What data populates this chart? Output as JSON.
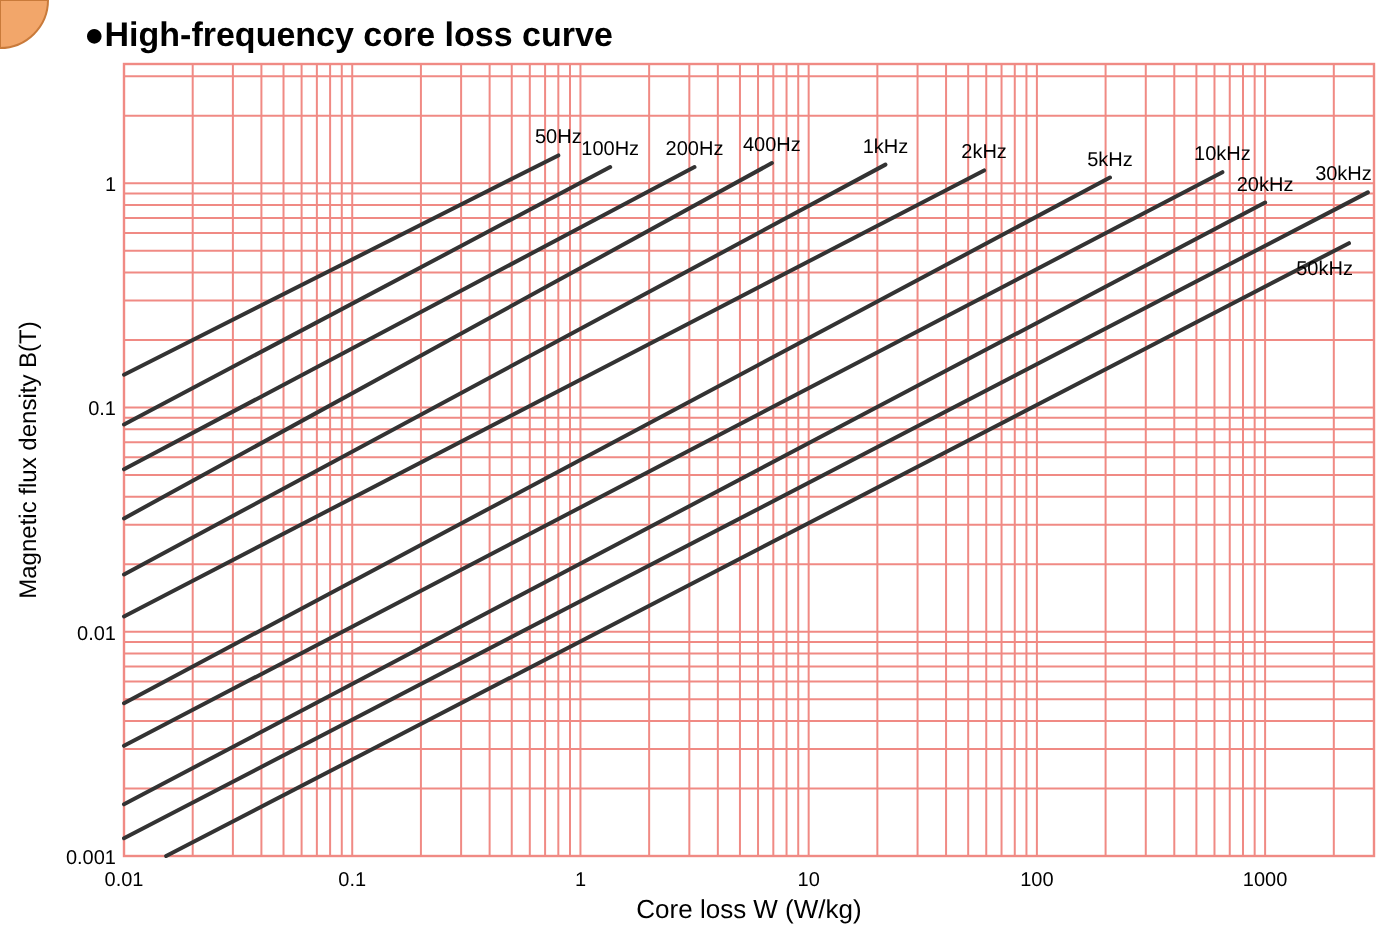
{
  "chart_data": {
    "type": "line",
    "title": "●High-frequency core loss curve",
    "xlabel": "Core loss W (W/kg)",
    "ylabel": "Magnetic flux density B(T)",
    "log": "xy",
    "grid": true,
    "xlim": [
      0.01,
      3000
    ],
    "ylim": [
      0.001,
      3.4
    ],
    "xticks": [
      0.01,
      0.1,
      1,
      10,
      100,
      1000
    ],
    "yticks": [
      0.001,
      0.01,
      0.1,
      1
    ],
    "series": [
      {
        "name": "50Hz",
        "color": "#333333",
        "x": [
          0.01,
          0.8
        ],
        "values": [
          0.14,
          1.33
        ]
      },
      {
        "name": "100Hz",
        "color": "#333333",
        "x": [
          0.01,
          1.35
        ],
        "values": [
          0.084,
          1.18
        ]
      },
      {
        "name": "200Hz",
        "color": "#333333",
        "x": [
          0.01,
          3.16
        ],
        "values": [
          0.053,
          1.18
        ]
      },
      {
        "name": "400Hz",
        "color": "#333333",
        "x": [
          0.01,
          6.9
        ],
        "values": [
          0.032,
          1.23
        ]
      },
      {
        "name": "1kHz",
        "color": "#333333",
        "x": [
          0.01,
          21.7
        ],
        "values": [
          0.018,
          1.21
        ]
      },
      {
        "name": "2kHz",
        "color": "#333333",
        "x": [
          0.01,
          58.7
        ],
        "values": [
          0.0117,
          1.14
        ]
      },
      {
        "name": "5kHz",
        "color": "#333333",
        "x": [
          0.01,
          209
        ],
        "values": [
          0.0048,
          1.06
        ]
      },
      {
        "name": "10kHz",
        "color": "#333333",
        "x": [
          0.01,
          650
        ],
        "values": [
          0.0031,
          1.12
        ]
      },
      {
        "name": "20kHz",
        "color": "#333333",
        "x": [
          0.01,
          1000
        ],
        "values": [
          0.0017,
          0.82
        ]
      },
      {
        "name": "30kHz",
        "color": "#333333",
        "x": [
          0.01,
          2820
        ],
        "values": [
          0.0012,
          0.91
        ]
      },
      {
        "name": "50kHz",
        "color": "#333333",
        "x": [
          0.0153,
          2330
        ],
        "values": [
          0.001,
          0.54
        ]
      }
    ]
  }
}
